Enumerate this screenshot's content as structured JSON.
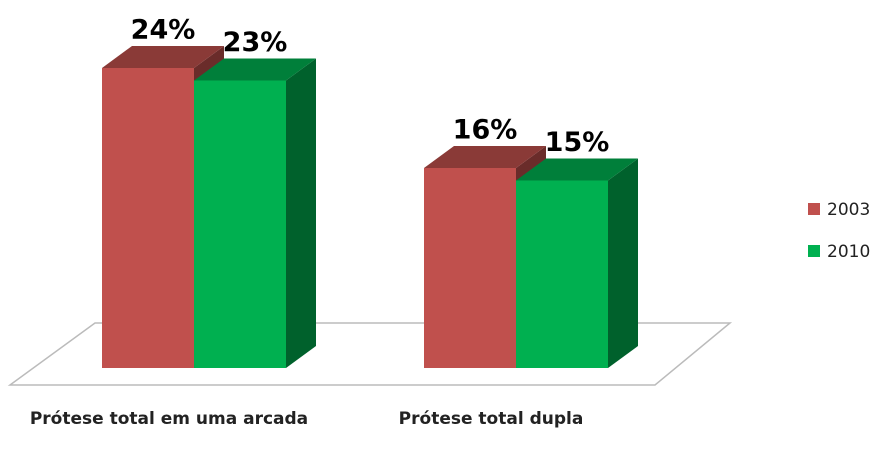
{
  "chart_data": {
    "type": "bar3d",
    "categories": [
      "Prótese total em uma arcada",
      "Prótese total dupla"
    ],
    "series": [
      {
        "name": "2003",
        "color": "#c0504d",
        "values": [
          24,
          16
        ],
        "value_labels": [
          "24%",
          "16%"
        ]
      },
      {
        "name": "2010",
        "color": "#00b050",
        "values": [
          23,
          15
        ],
        "value_labels": [
          "23%",
          "15%"
        ]
      }
    ],
    "legend": "right"
  }
}
